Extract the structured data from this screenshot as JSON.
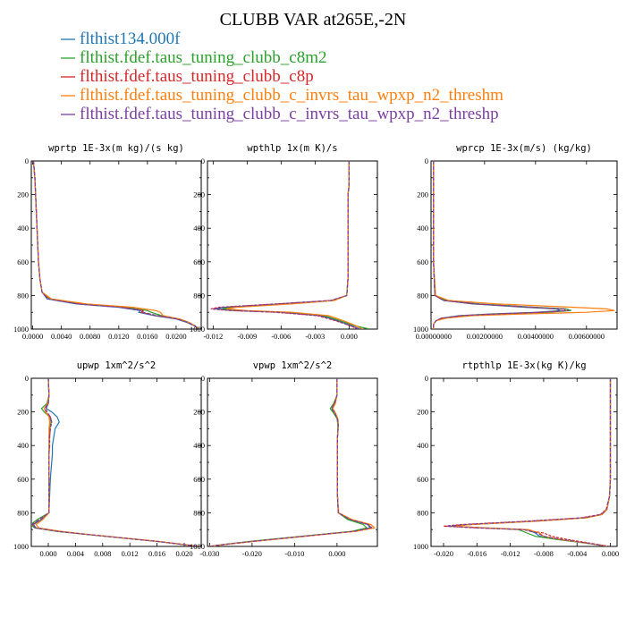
{
  "figure": {
    "title": "CLUBB VAR at265E,-2N"
  },
  "colors": {
    "blue": "#1f77b4",
    "green": "#2ca02c",
    "red": "#d62728",
    "orange": "#ff7f0e",
    "purple": "#7b3fa0"
  },
  "legend": [
    {
      "name": "flthist134.000f",
      "color": "#1f77b4"
    },
    {
      "name": "flthist.fdef.taus_tuning_clubb_c8m2",
      "color": "#2ca02c"
    },
    {
      "name": "flthist.fdef.taus_tuning_clubb_c8p",
      "color": "#d62728"
    },
    {
      "name": "flthist.fdef.taus_tuning_clubb_c_invrs_tau_wpxp_n2_threshm",
      "color": "#ff7f0e"
    },
    {
      "name": "flthist.fdef.taus_tuning_clubb_c_invrs_tau_wpxp_n2_threshp",
      "color": "#7b3fa0"
    }
  ],
  "chart_data": [
    {
      "type": "line",
      "title": "wprtp  1E-3x(m kg)/(s kg)",
      "xlim": [
        -0.0002,
        0.0235
      ],
      "ylim": [
        1000,
        0
      ],
      "xticks": [
        "0.0000",
        "0.0040",
        "0.0080",
        "0.0120",
        "0.0160",
        "0.0200"
      ],
      "xtick_values": [
        0,
        0.004,
        0.008,
        0.012,
        0.016,
        0.02
      ],
      "yticks": [
        0,
        200,
        400,
        600,
        800,
        1000
      ],
      "y": [
        0,
        100,
        200,
        300,
        400,
        500,
        600,
        700,
        780,
        820,
        850,
        870,
        890,
        900,
        920,
        940,
        960,
        980,
        1000
      ],
      "series": [
        {
          "color": "#1f77b4",
          "x": [
            0.0001,
            0.0003,
            0.0004,
            0.0005,
            0.0006,
            0.0007,
            0.0008,
            0.001,
            0.0013,
            0.002,
            0.006,
            0.012,
            0.015,
            0.0148,
            0.017,
            0.02,
            0.0215,
            0.0225,
            0.0232
          ]
        },
        {
          "color": "#2ca02c",
          "x": [
            0.0001,
            0.0003,
            0.0004,
            0.0005,
            0.0006,
            0.0007,
            0.0008,
            0.001,
            0.0013,
            0.0024,
            0.007,
            0.013,
            0.016,
            0.0165,
            0.018,
            0.0205,
            0.0218,
            0.0226,
            0.0232
          ]
        },
        {
          "color": "#d62728",
          "x": [
            0.0001,
            0.0003,
            0.0004,
            0.0005,
            0.0006,
            0.0007,
            0.0008,
            0.001,
            0.0013,
            0.0022,
            0.0065,
            0.0125,
            0.0155,
            0.015,
            0.0172,
            0.0202,
            0.0216,
            0.0226,
            0.0232
          ]
        },
        {
          "color": "#ff7f0e",
          "x": [
            0.0001,
            0.0003,
            0.0004,
            0.0005,
            0.0006,
            0.0007,
            0.0008,
            0.001,
            0.0013,
            0.0026,
            0.0075,
            0.014,
            0.0172,
            0.0178,
            0.0182,
            0.0205,
            0.0218,
            0.0226,
            0.0232
          ]
        },
        {
          "color": "#7b3fa0",
          "x": [
            0.0001,
            0.0003,
            0.0004,
            0.0005,
            0.0006,
            0.0007,
            0.0008,
            0.001,
            0.0013,
            0.0021,
            0.0062,
            0.0122,
            0.0152,
            0.0154,
            0.0174,
            0.0202,
            0.0216,
            0.0226,
            0.0232
          ]
        }
      ]
    },
    {
      "type": "line",
      "title": "wpthlp  1x(m K)/s",
      "xlim": [
        -0.0125,
        0.0025
      ],
      "ylim": [
        1000,
        0
      ],
      "xticks": [
        "-0.012",
        "-0.009",
        "-0.006",
        "-0.003",
        "0.000"
      ],
      "xtick_values": [
        -0.012,
        -0.009,
        -0.006,
        -0.003,
        0
      ],
      "yticks": [
        0,
        200,
        400,
        600,
        800,
        1000
      ],
      "y": [
        0,
        100,
        150,
        200,
        300,
        500,
        700,
        800,
        830,
        850,
        870,
        880,
        890,
        900,
        920,
        950,
        980,
        1000
      ],
      "series": [
        {
          "color": "#1f77b4",
          "x": [
            0.0,
            0.0,
            0.0,
            -0.0001,
            -0.0001,
            -0.0001,
            -0.0001,
            -0.0002,
            -0.0015,
            -0.006,
            -0.011,
            -0.0118,
            -0.01,
            -0.006,
            -0.0025,
            -0.001,
            0.0002,
            0.001
          ]
        },
        {
          "color": "#2ca02c",
          "x": [
            0.0,
            0.0,
            0.0,
            -0.0001,
            -0.0001,
            -0.0001,
            -0.0001,
            -0.0002,
            -0.0014,
            -0.0055,
            -0.0105,
            -0.0112,
            -0.0095,
            -0.0055,
            -0.0022,
            -0.0008,
            0.0005,
            0.0018
          ]
        },
        {
          "color": "#d62728",
          "x": [
            0.0,
            0.0,
            0.0,
            -0.0001,
            -0.0001,
            -0.0001,
            -0.0001,
            -0.0002,
            -0.0016,
            -0.0065,
            -0.0115,
            -0.0122,
            -0.0105,
            -0.0065,
            -0.0028,
            -0.0012,
            0.0001,
            0.0008
          ]
        },
        {
          "color": "#ff7f0e",
          "x": [
            0.0,
            0.0,
            0.0,
            -0.0001,
            -0.0001,
            -0.0001,
            -0.0001,
            -0.0002,
            -0.0013,
            -0.005,
            -0.01,
            -0.0108,
            -0.009,
            -0.005,
            -0.0018,
            -0.0005,
            0.0006,
            0.0012
          ]
        },
        {
          "color": "#7b3fa0",
          "x": [
            0.0,
            0.0,
            0.0,
            -0.0001,
            -0.0001,
            -0.0001,
            -0.0001,
            -0.0002,
            -0.0016,
            -0.0062,
            -0.0112,
            -0.012,
            -0.0102,
            -0.0062,
            -0.0026,
            -0.0011,
            0.0001,
            0.0009
          ]
        }
      ]
    },
    {
      "type": "line",
      "title": "wprcp  1E-3x(m/s) (kg/kg)",
      "xlim": [
        -0.0001,
        0.0072
      ],
      "ylim": [
        1000,
        0
      ],
      "xticks": [
        "0.00000000",
        "0.00200000",
        "0.00400000",
        "0.00600000"
      ],
      "xtick_values": [
        0,
        0.002,
        0.004,
        0.006
      ],
      "yticks": [
        0,
        200,
        400,
        600,
        800,
        1000
      ],
      "y": [
        0,
        200,
        400,
        600,
        800,
        830,
        850,
        870,
        880,
        890,
        900,
        910,
        920,
        935,
        950,
        970,
        1000
      ],
      "series": [
        {
          "color": "#1f77b4",
          "x": [
            0,
            0,
            0,
            0,
            5e-05,
            0.0004,
            0.0015,
            0.0036,
            0.0048,
            0.005,
            0.004,
            0.0022,
            0.001,
            0.0003,
            0.0001,
            0,
            0
          ]
        },
        {
          "color": "#2ca02c",
          "x": [
            0,
            0,
            0,
            0,
            5e-05,
            0.0005,
            0.0018,
            0.004,
            0.0052,
            0.0054,
            0.0045,
            0.0026,
            0.0012,
            0.0004,
            0.0001,
            0,
            0
          ]
        },
        {
          "color": "#d62728",
          "x": [
            0,
            0,
            0,
            0,
            5e-05,
            0.0004,
            0.0016,
            0.0038,
            0.005,
            0.0052,
            0.0042,
            0.0024,
            0.0011,
            0.0003,
            0.0001,
            0,
            0
          ]
        },
        {
          "color": "#ff7f0e",
          "x": [
            0,
            0,
            0,
            0,
            8e-05,
            0.0006,
            0.0025,
            0.0055,
            0.0068,
            0.0071,
            0.006,
            0.0035,
            0.0015,
            0.0005,
            0.0001,
            0,
            0
          ]
        },
        {
          "color": "#7b3fa0",
          "x": [
            0,
            0,
            0,
            0,
            5e-05,
            0.0004,
            0.0017,
            0.0039,
            0.0051,
            0.0053,
            0.0043,
            0.0025,
            0.0011,
            0.0003,
            0.0001,
            0,
            0
          ]
        }
      ]
    },
    {
      "type": "line",
      "title": "upwp  1xm^2/s^2",
      "xlim": [
        -0.0025,
        0.0225
      ],
      "ylim": [
        1000,
        0
      ],
      "xticks": [
        "0.000",
        "0.004",
        "0.008",
        "0.012",
        "0.016",
        "0.020"
      ],
      "xtick_values": [
        0,
        0.004,
        0.008,
        0.012,
        0.016,
        0.02
      ],
      "yticks": [
        0,
        200,
        400,
        600,
        800,
        1000
      ],
      "y": [
        0,
        100,
        150,
        180,
        200,
        230,
        260,
        300,
        350,
        400,
        450,
        500,
        600,
        700,
        800,
        840,
        870,
        890,
        910,
        930,
        950,
        970,
        1000
      ],
      "series": [
        {
          "color": "#1f77b4",
          "x": [
            0.0,
            0.0001,
            0.0,
            -0.0003,
            0.0005,
            0.0013,
            0.0016,
            0.001,
            0.0008,
            0.0006,
            0.0006,
            0.0005,
            0.0003,
            0.0002,
            0.0001,
            -0.001,
            -0.0022,
            -0.0018,
            0.0015,
            0.006,
            0.011,
            0.016,
            0.0222
          ]
        },
        {
          "color": "#2ca02c",
          "x": [
            0.0,
            0.0001,
            -0.0002,
            -0.001,
            -0.0006,
            0.0002,
            0.0004,
            0.0002,
            0.0001,
            0.0001,
            0.0001,
            0.0001,
            0.0001,
            0.0001,
            0.0001,
            -0.0016,
            -0.0026,
            -0.002,
            0.0012,
            0.0058,
            0.011,
            0.016,
            0.0222
          ]
        },
        {
          "color": "#d62728",
          "x": [
            0.0,
            0.0001,
            0.0,
            -0.0004,
            -0.0002,
            0.0003,
            0.0005,
            0.0003,
            0.0002,
            0.0002,
            0.0001,
            0.0001,
            0.0001,
            0.0001,
            0.0001,
            -0.0012,
            -0.0023,
            -0.0019,
            0.0014,
            0.006,
            0.011,
            0.016,
            0.0222
          ]
        },
        {
          "color": "#ff7f0e",
          "x": [
            0.0,
            0.0001,
            -0.0001,
            -0.0006,
            -0.0004,
            0.0001,
            0.0002,
            0.0001,
            0.0001,
            0.0001,
            0.0001,
            0.0001,
            0.0001,
            0.0001,
            0.0001,
            -0.0008,
            -0.0018,
            -0.0014,
            0.0018,
            0.0062,
            0.0112,
            0.0162,
            0.0222
          ]
        },
        {
          "color": "#7b3fa0",
          "x": [
            0.0,
            0.0001,
            0.0,
            -0.0005,
            -0.0002,
            0.0003,
            0.0005,
            0.0003,
            0.0002,
            0.0002,
            0.0001,
            0.0001,
            0.0001,
            0.0001,
            0.0001,
            -0.0013,
            -0.0024,
            -0.0019,
            0.0014,
            0.006,
            0.011,
            0.016,
            0.0222
          ]
        }
      ]
    },
    {
      "type": "line",
      "title": "vpwp  1xm^2/s^2",
      "xlim": [
        -0.0305,
        0.0095
      ],
      "ylim": [
        1000,
        0
      ],
      "xticks": [
        "-0.030",
        "-0.020",
        "-0.010",
        "0.000"
      ],
      "xtick_values": [
        -0.03,
        -0.02,
        -0.01,
        0
      ],
      "yticks": [
        0,
        200,
        400,
        600,
        800,
        1000
      ],
      "y": [
        0,
        100,
        150,
        180,
        200,
        240,
        280,
        350,
        500,
        700,
        800,
        840,
        870,
        890,
        910,
        930,
        950,
        970,
        990,
        1000
      ],
      "series": [
        {
          "color": "#1f77b4",
          "x": [
            0.0,
            0.0,
            -0.0005,
            -0.0012,
            -0.0006,
            0.0002,
            0.0003,
            0.0001,
            0.0001,
            0.0001,
            0.0003,
            0.003,
            0.0072,
            0.0078,
            0.004,
            -0.004,
            -0.012,
            -0.02,
            -0.027,
            -0.03
          ]
        },
        {
          "color": "#2ca02c",
          "x": [
            0.0,
            0.0,
            -0.0008,
            -0.0016,
            -0.001,
            0.0,
            0.0002,
            0.0001,
            0.0001,
            0.0001,
            0.0003,
            0.0025,
            0.0062,
            0.007,
            0.0035,
            -0.0045,
            -0.0125,
            -0.0205,
            -0.0272,
            -0.03
          ]
        },
        {
          "color": "#d62728",
          "x": [
            0.0,
            0.0,
            -0.0006,
            -0.0013,
            -0.0007,
            0.0001,
            0.0003,
            0.0001,
            0.0001,
            0.0001,
            0.0003,
            0.0032,
            0.0075,
            0.0082,
            0.0042,
            -0.0038,
            -0.0118,
            -0.0198,
            -0.027,
            -0.03
          ]
        },
        {
          "color": "#ff7f0e",
          "x": [
            0.0,
            0.0,
            -0.0004,
            -0.001,
            -0.0005,
            0.0002,
            0.0003,
            0.0001,
            0.0001,
            0.0001,
            0.0004,
            0.0035,
            0.008,
            0.0088,
            0.0045,
            -0.0035,
            -0.0115,
            -0.0195,
            -0.0268,
            -0.03
          ]
        },
        {
          "color": "#7b3fa0",
          "x": [
            0.0,
            0.0,
            -0.0006,
            -0.0013,
            -0.0007,
            0.0001,
            0.0003,
            0.0001,
            0.0001,
            0.0001,
            0.0003,
            0.0031,
            0.0074,
            0.008,
            0.0041,
            -0.0039,
            -0.0119,
            -0.0199,
            -0.027,
            -0.03
          ]
        }
      ]
    },
    {
      "type": "line",
      "title": "rtpthlp  1E-3x(kg K)/kg",
      "xlim": [
        -0.0215,
        0.0008
      ],
      "ylim": [
        1000,
        0
      ],
      "xticks": [
        "-0.020",
        "-0.016",
        "-0.012",
        "-0.008",
        "-0.004",
        "0.000"
      ],
      "xtick_values": [
        -0.02,
        -0.016,
        -0.012,
        -0.008,
        -0.004,
        0
      ],
      "yticks": [
        0,
        200,
        400,
        600,
        800,
        1000
      ],
      "y": [
        0,
        200,
        400,
        600,
        700,
        780,
        810,
        830,
        850,
        870,
        880,
        890,
        900,
        920,
        940,
        960,
        980,
        1000
      ],
      "series": [
        {
          "color": "#1f77b4",
          "x": [
            0,
            0,
            0,
            0,
            -0.0001,
            -0.0004,
            -0.001,
            -0.003,
            -0.009,
            -0.017,
            -0.019,
            -0.015,
            -0.01,
            -0.009,
            -0.0085,
            -0.006,
            -0.003,
            -0.0002
          ]
        },
        {
          "color": "#2ca02c",
          "x": [
            0,
            0,
            0,
            0,
            -0.0001,
            -0.0004,
            -0.001,
            -0.003,
            -0.0092,
            -0.0172,
            -0.0192,
            -0.0155,
            -0.011,
            -0.01,
            -0.009,
            -0.0062,
            -0.0031,
            -0.0002
          ]
        },
        {
          "color": "#d62728",
          "x": [
            0,
            0,
            0,
            0,
            -0.0001,
            -0.0005,
            -0.0012,
            -0.0035,
            -0.01,
            -0.018,
            -0.02,
            -0.016,
            -0.0105,
            -0.008,
            -0.007,
            -0.005,
            -0.0025,
            -0.0002
          ]
        },
        {
          "color": "#ff7f0e",
          "x": [
            0,
            0,
            0,
            0,
            -0.0001,
            -0.0004,
            -0.001,
            -0.0028,
            -0.0088,
            -0.0168,
            -0.0188,
            -0.0148,
            -0.0098,
            -0.0085,
            -0.008,
            -0.0058,
            -0.0029,
            -0.0002
          ]
        },
        {
          "color": "#7b3fa0",
          "x": [
            0,
            0,
            0,
            0,
            -0.0001,
            -0.0005,
            -0.0011,
            -0.0033,
            -0.0096,
            -0.0176,
            -0.0196,
            -0.0158,
            -0.0104,
            -0.0088,
            -0.008,
            -0.0056,
            -0.0028,
            -0.0002
          ]
        }
      ]
    }
  ]
}
